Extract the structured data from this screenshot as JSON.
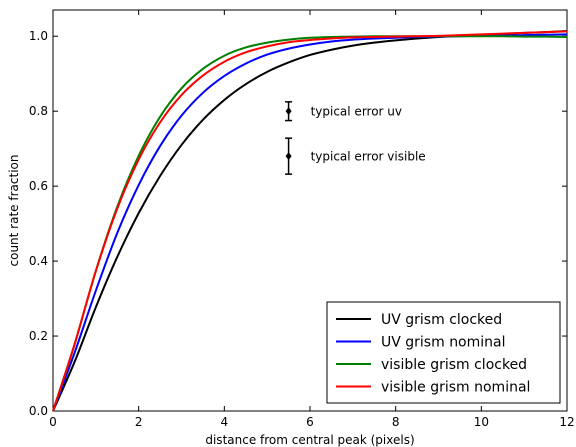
{
  "chart_data": {
    "type": "line",
    "title": "",
    "xlabel": "distance from central peak (pixels)",
    "ylabel": "count rate fraction",
    "xlim": [
      0,
      12
    ],
    "ylim": [
      0.0,
      1.07
    ],
    "grid": false,
    "legend_position": "bottom-right",
    "x_ticks": [
      0,
      2,
      4,
      6,
      8,
      10,
      12
    ],
    "x_tick_labels": [
      "0",
      "2",
      "4",
      "6",
      "8",
      "10",
      "12"
    ],
    "y_ticks": [
      0.0,
      0.2,
      0.4,
      0.6,
      0.8,
      1.0
    ],
    "y_tick_labels": [
      "0.0",
      "0.2",
      "0.4",
      "0.6",
      "0.8",
      "1.0"
    ],
    "x": [
      0,
      0.5,
      1,
      1.5,
      2,
      2.5,
      3,
      3.5,
      4,
      4.5,
      5,
      5.5,
      6,
      6.5,
      7,
      7.5,
      8,
      8.5,
      9,
      9.5,
      10,
      10.5,
      11,
      11.5,
      12
    ],
    "series": [
      {
        "name": "UV grism clocked",
        "color": "#000000",
        "values": [
          0.0,
          0.13,
          0.277,
          0.411,
          0.528,
          0.627,
          0.71,
          0.777,
          0.83,
          0.872,
          0.905,
          0.93,
          0.95,
          0.964,
          0.975,
          0.983,
          0.989,
          0.994,
          0.998,
          1.001,
          1.004,
          1.006,
          1.009,
          1.011,
          1.014
        ]
      },
      {
        "name": "UV grism nominal",
        "color": "#0000ff",
        "values": [
          0.0,
          0.154,
          0.321,
          0.475,
          0.603,
          0.707,
          0.788,
          0.849,
          0.894,
          0.927,
          0.951,
          0.967,
          0.978,
          0.986,
          0.991,
          0.994,
          0.996,
          0.998,
          0.999,
          1.0,
          1.001,
          1.002,
          1.003,
          1.004,
          1.005
        ]
      },
      {
        "name": "visible grism clocked",
        "color": "#008000",
        "values": [
          0.0,
          0.176,
          0.374,
          0.545,
          0.681,
          0.785,
          0.861,
          0.913,
          0.948,
          0.97,
          0.983,
          0.991,
          0.996,
          0.998,
          0.999,
          1.0,
          1.0,
          1.0,
          1.0,
          1.0,
          1.0,
          1.0,
          0.999,
          0.999,
          0.998
        ]
      },
      {
        "name": "visible grism nominal",
        "color": "#ff0000",
        "values": [
          0.0,
          0.177,
          0.373,
          0.54,
          0.671,
          0.77,
          0.843,
          0.895,
          0.932,
          0.957,
          0.973,
          0.984,
          0.99,
          0.994,
          0.997,
          0.998,
          0.999,
          1.0,
          1.001,
          1.003,
          1.005,
          1.007,
          1.009,
          1.011,
          1.013
        ]
      }
    ],
    "annotations": [
      {
        "label": "typical error uv",
        "x": 5.5,
        "y": 0.8,
        "err": 0.025
      },
      {
        "label": "typical error visible",
        "x": 5.5,
        "y": 0.68,
        "err": 0.048
      }
    ]
  }
}
